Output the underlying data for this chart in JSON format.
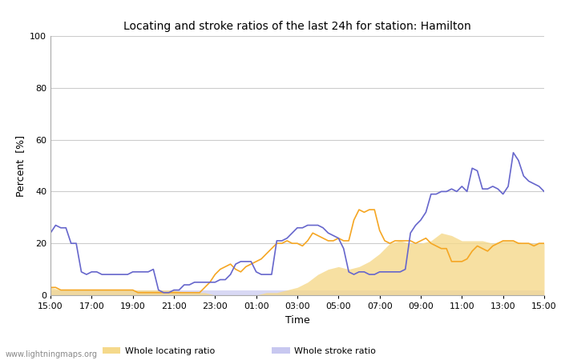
{
  "title": "Locating and stroke ratios of the last 24h for station: Hamilton",
  "xlabel": "Time",
  "ylabel": "Percent  [%]",
  "xlim": [
    0,
    48
  ],
  "ylim": [
    0,
    100
  ],
  "yticks": [
    0,
    20,
    40,
    60,
    80,
    100
  ],
  "xtick_labels": [
    "15:00",
    "17:00",
    "19:00",
    "21:00",
    "23:00",
    "01:00",
    "03:00",
    "05:00",
    "07:00",
    "09:00",
    "11:00",
    "13:00",
    "15:00"
  ],
  "xtick_positions": [
    0,
    4,
    8,
    12,
    16,
    20,
    24,
    28,
    32,
    36,
    40,
    44,
    48
  ],
  "watermark": "www.lightningmaps.org",
  "whole_locating_ratio": {
    "color": "#f5d98b",
    "alpha": 0.8,
    "x": [
      0,
      1,
      2,
      3,
      4,
      5,
      6,
      7,
      8,
      9,
      10,
      11,
      12,
      13,
      14,
      15,
      16,
      17,
      18,
      19,
      20,
      21,
      22,
      23,
      24,
      25,
      26,
      27,
      28,
      29,
      30,
      31,
      32,
      33,
      34,
      35,
      36,
      37,
      38,
      39,
      40,
      41,
      42,
      43,
      44,
      45,
      46,
      47,
      48
    ],
    "y": [
      3,
      2,
      2,
      2,
      2,
      2,
      2,
      2,
      2,
      2,
      2,
      2,
      2,
      1,
      1,
      1,
      0,
      0,
      0,
      0,
      0,
      1,
      1,
      2,
      3,
      5,
      8,
      10,
      11,
      10,
      11,
      13,
      16,
      20,
      21,
      20,
      20,
      21,
      24,
      23,
      21,
      21,
      21,
      20,
      21,
      21,
      20,
      20,
      20
    ]
  },
  "whole_stroke_ratio": {
    "color": "#c8c8f0",
    "alpha": 0.7,
    "x": [
      0,
      1,
      2,
      3,
      4,
      5,
      6,
      7,
      8,
      9,
      10,
      11,
      12,
      13,
      14,
      15,
      16,
      17,
      18,
      19,
      20,
      21,
      22,
      23,
      24,
      25,
      26,
      27,
      28,
      29,
      30,
      31,
      32,
      33,
      34,
      35,
      36,
      37,
      38,
      39,
      40,
      41,
      42,
      43,
      44,
      45,
      46,
      47,
      48
    ],
    "y": [
      2,
      2,
      2,
      2,
      2,
      2,
      2,
      2,
      2,
      2,
      2,
      2,
      2,
      2,
      2,
      2,
      2,
      2,
      2,
      2,
      2,
      2,
      2,
      2,
      2,
      2,
      2,
      2,
      2,
      2,
      2,
      2,
      2,
      2,
      2,
      2,
      2,
      2,
      2,
      2,
      2,
      2,
      2,
      2,
      2,
      2,
      2,
      2,
      2
    ]
  },
  "locating_ratio": {
    "color": "#f5a623",
    "linewidth": 1.2,
    "x": [
      0,
      0.5,
      1,
      1.5,
      2,
      2.5,
      3,
      3.5,
      4,
      4.5,
      5,
      5.5,
      6,
      6.5,
      7,
      7.5,
      8,
      8.5,
      9,
      9.5,
      10,
      10.5,
      11,
      11.5,
      12,
      12.5,
      13,
      13.5,
      14,
      14.5,
      15,
      15.5,
      16,
      16.5,
      17,
      17.5,
      18,
      18.5,
      19,
      19.5,
      20,
      20.5,
      21,
      21.5,
      22,
      22.5,
      23,
      23.5,
      24,
      24.5,
      25,
      25.5,
      26,
      26.5,
      27,
      27.5,
      28,
      28.5,
      29,
      29.5,
      30,
      30.5,
      31,
      31.5,
      32,
      32.5,
      33,
      33.5,
      34,
      34.5,
      35,
      35.5,
      36,
      36.5,
      37,
      37.5,
      38,
      38.5,
      39,
      39.5,
      40,
      40.5,
      41,
      41.5,
      42,
      42.5,
      43,
      43.5,
      44,
      44.5,
      45,
      45.5,
      46,
      46.5,
      47,
      47.5,
      48
    ],
    "y": [
      3,
      3,
      2,
      2,
      2,
      2,
      2,
      2,
      2,
      2,
      2,
      2,
      2,
      2,
      2,
      2,
      2,
      1,
      1,
      1,
      1,
      1,
      1,
      1,
      1,
      1,
      1,
      1,
      1,
      1,
      3,
      5,
      8,
      10,
      11,
      12,
      10,
      9,
      11,
      12,
      13,
      14,
      16,
      18,
      20,
      20,
      21,
      20,
      20,
      19,
      21,
      24,
      23,
      22,
      21,
      21,
      22,
      21,
      21,
      29,
      33,
      32,
      33,
      33,
      25,
      21,
      20,
      21,
      21,
      21,
      21,
      20,
      21,
      22,
      20,
      19,
      18,
      18,
      13,
      13,
      13,
      14,
      17,
      19,
      18,
      17,
      19,
      20,
      21,
      21,
      21,
      20,
      20,
      20,
      19,
      20,
      20
    ]
  },
  "stroke_ratio": {
    "color": "#6666cc",
    "linewidth": 1.2,
    "x": [
      0,
      0.5,
      1,
      1.5,
      2,
      2.5,
      3,
      3.5,
      4,
      4.5,
      5,
      5.5,
      6,
      6.5,
      7,
      7.5,
      8,
      8.5,
      9,
      9.5,
      10,
      10.5,
      11,
      11.5,
      12,
      12.5,
      13,
      13.5,
      14,
      14.5,
      15,
      15.5,
      16,
      16.5,
      17,
      17.5,
      18,
      18.5,
      19,
      19.5,
      20,
      20.5,
      21,
      21.5,
      22,
      22.5,
      23,
      23.5,
      24,
      24.5,
      25,
      25.5,
      26,
      26.5,
      27,
      27.5,
      28,
      28.5,
      29,
      29.5,
      30,
      30.5,
      31,
      31.5,
      32,
      32.5,
      33,
      33.5,
      34,
      34.5,
      35,
      35.5,
      36,
      36.5,
      37,
      37.5,
      38,
      38.5,
      39,
      39.5,
      40,
      40.5,
      41,
      41.5,
      42,
      42.5,
      43,
      43.5,
      44,
      44.5,
      45,
      45.5,
      46,
      46.5,
      47,
      47.5,
      48
    ],
    "y": [
      24,
      27,
      26,
      26,
      20,
      20,
      9,
      8,
      9,
      9,
      8,
      8,
      8,
      8,
      8,
      8,
      9,
      9,
      9,
      9,
      10,
      2,
      1,
      1,
      2,
      2,
      4,
      4,
      5,
      5,
      5,
      5,
      5,
      6,
      6,
      8,
      12,
      13,
      13,
      13,
      9,
      8,
      8,
      8,
      21,
      21,
      22,
      24,
      26,
      26,
      27,
      27,
      27,
      26,
      24,
      23,
      22,
      18,
      9,
      8,
      9,
      9,
      8,
      8,
      9,
      9,
      9,
      9,
      9,
      10,
      24,
      27,
      29,
      32,
      39,
      39,
      40,
      40,
      41,
      40,
      42,
      40,
      49,
      48,
      41,
      41,
      42,
      41,
      39,
      42,
      55,
      52,
      46,
      44,
      43,
      42,
      40
    ]
  },
  "bg_color": "#ffffff",
  "grid_color": "#cccccc",
  "spine_color": "#aaaaaa",
  "watermark_color": "#888888",
  "title_fontsize": 10,
  "axis_fontsize": 9,
  "tick_fontsize": 8,
  "watermark_fontsize": 7
}
